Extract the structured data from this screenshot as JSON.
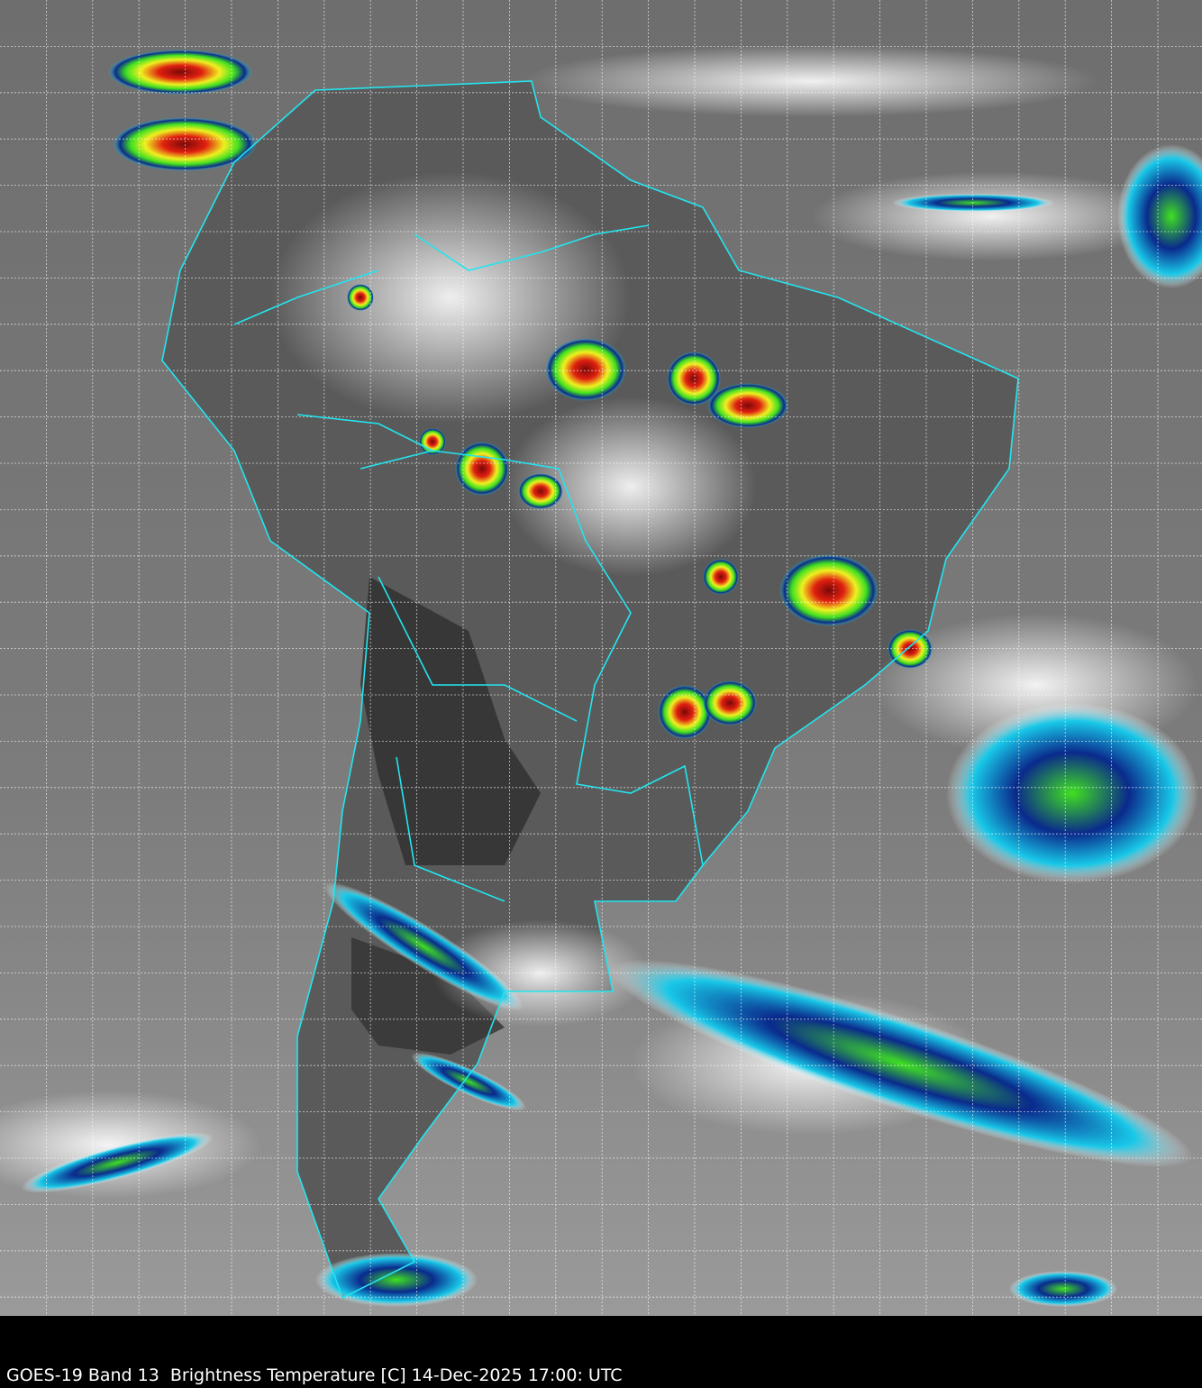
{
  "caption": "GOES-19 Band 13  Brightness Temperature [C] 14-Dec-2025 17:00: UTC",
  "map": {
    "region": "South America",
    "product": "infrared brightness temperature imagery",
    "colors": {
      "background_gray": "#7a7a7a",
      "land_dark": "#3a3a3a",
      "coastline": "#22e5f0",
      "grid": "#ffffff",
      "cold_blue": "#0a2a8c",
      "cold_cyan": "#18c8e8",
      "cold_green": "#40e020",
      "cold_yellow": "#f0f020",
      "cold_red": "#e02010",
      "caption_bar": "#000000"
    },
    "grid": true
  }
}
